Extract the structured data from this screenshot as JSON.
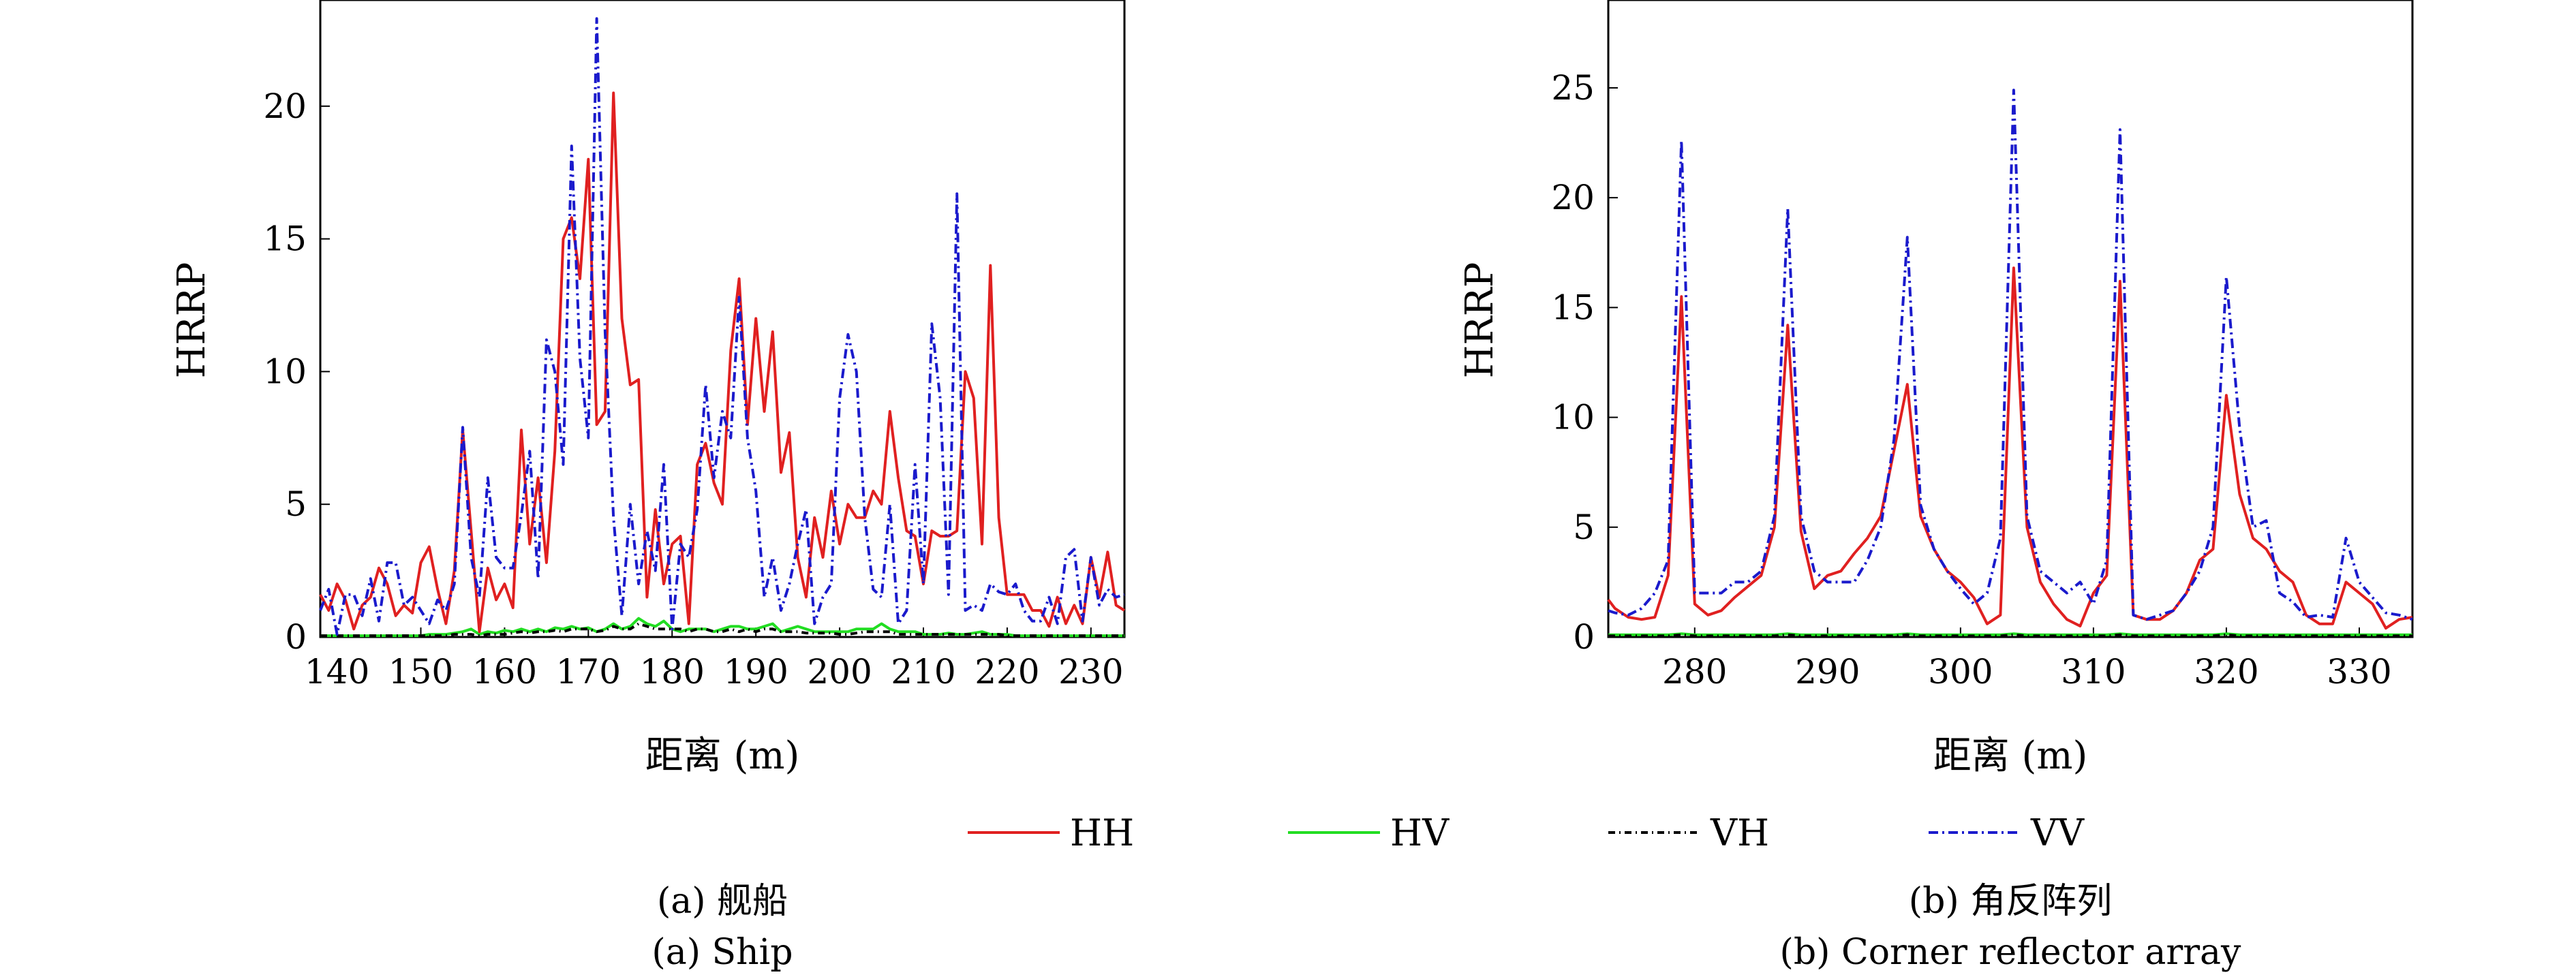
{
  "chart_data": [
    {
      "type": "line",
      "caption_cn": "(a) 舰船",
      "caption_en": "(a) Ship",
      "xlabel": "距离 (m)",
      "ylabel": "HRRP",
      "xlim": [
        138,
        234
      ],
      "ylim": [
        0,
        24
      ],
      "xticks": [
        140,
        150,
        160,
        170,
        180,
        190,
        200,
        210,
        220,
        230
      ],
      "yticks": [
        0,
        5,
        10,
        15,
        20
      ],
      "x": [
        138,
        139,
        140,
        141,
        142,
        143,
        144,
        145,
        146,
        147,
        148,
        149,
        150,
        151,
        152,
        153,
        154,
        155,
        156,
        157,
        158,
        159,
        160,
        161,
        162,
        163,
        164,
        165,
        166,
        167,
        168,
        169,
        170,
        171,
        172,
        173,
        174,
        175,
        176,
        177,
        178,
        179,
        180,
        181,
        182,
        183,
        184,
        185,
        186,
        187,
        188,
        189,
        190,
        191,
        192,
        193,
        194,
        195,
        196,
        197,
        198,
        199,
        200,
        201,
        202,
        203,
        204,
        205,
        206,
        207,
        208,
        209,
        210,
        211,
        212,
        213,
        214,
        215,
        216,
        217,
        218,
        219,
        220,
        221,
        222,
        223,
        224,
        225,
        226,
        227,
        228,
        229,
        230,
        231,
        232,
        233,
        234
      ],
      "series": [
        {
          "name": "HH",
          "color": "#e02020",
          "dash": "solid",
          "values": [
            1.6,
            1.0,
            2.0,
            1.4,
            0.3,
            1.2,
            1.5,
            2.6,
            2.0,
            0.8,
            1.2,
            0.9,
            2.8,
            3.4,
            1.8,
            0.5,
            2.5,
            7.8,
            4.0,
            0.2,
            2.6,
            1.4,
            2.0,
            1.1,
            7.8,
            3.5,
            6.0,
            2.8,
            7.0,
            15.0,
            15.8,
            13.5,
            18.0,
            8.0,
            8.5,
            20.5,
            12.0,
            9.5,
            9.7,
            1.5,
            4.8,
            2.0,
            3.5,
            3.8,
            0.5,
            6.5,
            7.3,
            5.8,
            5.0,
            10.8,
            13.5,
            8.0,
            12.0,
            8.5,
            11.5,
            6.2,
            7.7,
            3.0,
            1.5,
            4.5,
            3.0,
            5.5,
            3.5,
            5.0,
            4.5,
            4.5,
            5.5,
            5.0,
            8.5,
            6.0,
            4.0,
            3.8,
            2.0,
            4.0,
            3.8,
            3.8,
            4.0,
            10.0,
            9.0,
            3.5,
            14.0,
            4.5,
            1.6,
            1.6,
            1.6,
            1.0,
            1.0,
            0.4,
            1.5,
            0.5,
            1.2,
            0.5,
            3.0,
            1.5,
            3.2,
            1.2,
            1.0
          ]
        },
        {
          "name": "HV",
          "color": "#22dd22",
          "dash": "solid",
          "values": [
            0.05,
            0.05,
            0.05,
            0.05,
            0.05,
            0.05,
            0.05,
            0.05,
            0.05,
            0.05,
            0.05,
            0.05,
            0.05,
            0.1,
            0.1,
            0.1,
            0.15,
            0.2,
            0.3,
            0.1,
            0.2,
            0.15,
            0.25,
            0.2,
            0.3,
            0.2,
            0.3,
            0.2,
            0.35,
            0.3,
            0.4,
            0.3,
            0.35,
            0.2,
            0.3,
            0.5,
            0.3,
            0.4,
            0.7,
            0.5,
            0.4,
            0.6,
            0.3,
            0.2,
            0.3,
            0.3,
            0.3,
            0.2,
            0.3,
            0.4,
            0.4,
            0.3,
            0.3,
            0.4,
            0.5,
            0.2,
            0.3,
            0.4,
            0.3,
            0.2,
            0.2,
            0.2,
            0.2,
            0.2,
            0.3,
            0.3,
            0.3,
            0.5,
            0.3,
            0.2,
            0.2,
            0.2,
            0.1,
            0.1,
            0.1,
            0.15,
            0.1,
            0.1,
            0.15,
            0.2,
            0.1,
            0.1,
            0.1,
            0.05,
            0.05,
            0.05,
            0.05,
            0.05,
            0.05,
            0.05,
            0.05,
            0.05,
            0.05,
            0.05,
            0.05,
            0.05,
            0.05
          ]
        },
        {
          "name": "VH",
          "color": "#000000",
          "dash": "10,6,2,6",
          "values": [
            0.05,
            0.05,
            0.05,
            0.05,
            0.05,
            0.05,
            0.05,
            0.05,
            0.05,
            0.05,
            0.05,
            0.05,
            0.05,
            0.05,
            0.05,
            0.05,
            0.1,
            0.1,
            0.1,
            0.05,
            0.1,
            0.1,
            0.1,
            0.15,
            0.2,
            0.15,
            0.2,
            0.2,
            0.25,
            0.2,
            0.3,
            0.3,
            0.3,
            0.2,
            0.25,
            0.4,
            0.3,
            0.3,
            0.5,
            0.4,
            0.3,
            0.3,
            0.3,
            0.3,
            0.2,
            0.3,
            0.3,
            0.2,
            0.2,
            0.3,
            0.2,
            0.3,
            0.2,
            0.3,
            0.3,
            0.2,
            0.2,
            0.2,
            0.15,
            0.15,
            0.15,
            0.15,
            0.1,
            0.1,
            0.15,
            0.2,
            0.2,
            0.2,
            0.2,
            0.1,
            0.1,
            0.1,
            0.1,
            0.1,
            0.1,
            0.1,
            0.1,
            0.1,
            0.1,
            0.1,
            0.1,
            0.1,
            0.05,
            0.05,
            0.05,
            0.05,
            0.05,
            0.05,
            0.05,
            0.05,
            0.05,
            0.05,
            0.05,
            0.05,
            0.05,
            0.05,
            0.05
          ]
        },
        {
          "name": "VV",
          "color": "#1a1acc",
          "dash": "14,6,3,6",
          "values": [
            1.0,
            1.8,
            0.1,
            1.6,
            1.6,
            0.8,
            2.2,
            0.6,
            2.8,
            2.8,
            1.2,
            1.5,
            1.0,
            0.5,
            1.4,
            1.0,
            2.0,
            7.9,
            3.0,
            1.5,
            6.0,
            3.0,
            2.6,
            2.6,
            4.6,
            7.0,
            2.2,
            11.2,
            10.0,
            6.5,
            18.5,
            10.5,
            7.5,
            23.3,
            11.5,
            4.5,
            0.8,
            5.0,
            2.0,
            4.0,
            2.5,
            6.5,
            0.3,
            3.5,
            3.0,
            4.8,
            9.5,
            6.0,
            8.5,
            7.5,
            12.8,
            7.5,
            5.5,
            1.5,
            3.0,
            1.0,
            2.0,
            3.5,
            4.8,
            0.5,
            1.5,
            2.0,
            9.0,
            11.4,
            10.0,
            4.5,
            1.8,
            1.5,
            5.0,
            0.5,
            1.0,
            6.5,
            2.0,
            11.8,
            9.0,
            1.6,
            16.7,
            1.0,
            1.2,
            1.0,
            2.0,
            1.7,
            1.6,
            2.0,
            1.0,
            0.6,
            0.6,
            1.5,
            0.5,
            3.0,
            3.3,
            0.6,
            3.0,
            1.2,
            1.8,
            1.5,
            1.6
          ]
        }
      ]
    },
    {
      "type": "line",
      "caption_cn": "(b) 角反阵列",
      "caption_en": "(b) Corner reflector array",
      "xlabel": "距离 (m)",
      "ylabel": "HRRP",
      "xlim": [
        273.5,
        334
      ],
      "ylim": [
        0,
        29
      ],
      "xticks": [
        280,
        290,
        300,
        310,
        320,
        330
      ],
      "yticks": [
        0,
        5,
        10,
        15,
        20,
        25
      ],
      "x": [
        273.5,
        274,
        275,
        276,
        277,
        278,
        279,
        280,
        281,
        282,
        283,
        284,
        285,
        286,
        287,
        288,
        289,
        290,
        291,
        292,
        293,
        294,
        295,
        296,
        297,
        298,
        299,
        300,
        301,
        302,
        303,
        304,
        305,
        306,
        307,
        308,
        309,
        310,
        311,
        312,
        313,
        314,
        315,
        316,
        317,
        318,
        319,
        320,
        321,
        322,
        323,
        324,
        325,
        326,
        327,
        328,
        329,
        330,
        331,
        332,
        333,
        334
      ],
      "series": [
        {
          "name": "HH",
          "color": "#e02020",
          "dash": "solid",
          "values": [
            1.7,
            1.3,
            0.9,
            0.8,
            0.9,
            2.8,
            15.5,
            1.5,
            1.0,
            1.2,
            1.8,
            2.3,
            2.8,
            5.0,
            14.2,
            4.8,
            2.2,
            2.8,
            3.0,
            3.8,
            4.5,
            5.5,
            8.5,
            11.5,
            5.5,
            4.0,
            3.0,
            2.5,
            1.8,
            0.6,
            1.0,
            16.8,
            5.0,
            2.5,
            1.5,
            0.8,
            0.5,
            2.0,
            2.8,
            16.2,
            1.0,
            0.8,
            0.8,
            1.2,
            2.0,
            3.5,
            4.0,
            11.0,
            6.5,
            4.5,
            4.0,
            3.0,
            2.5,
            1.0,
            0.6,
            0.6,
            2.5,
            2.0,
            1.5,
            0.4,
            0.8,
            0.9
          ]
        },
        {
          "name": "HV",
          "color": "#22dd22",
          "dash": "solid",
          "values": [
            0.1,
            0.1,
            0.1,
            0.1,
            0.1,
            0.1,
            0.15,
            0.1,
            0.1,
            0.1,
            0.1,
            0.1,
            0.1,
            0.1,
            0.15,
            0.1,
            0.1,
            0.1,
            0.1,
            0.1,
            0.1,
            0.1,
            0.1,
            0.15,
            0.1,
            0.1,
            0.1,
            0.1,
            0.1,
            0.1,
            0.1,
            0.15,
            0.1,
            0.1,
            0.1,
            0.1,
            0.1,
            0.1,
            0.1,
            0.15,
            0.1,
            0.1,
            0.1,
            0.1,
            0.1,
            0.1,
            0.1,
            0.15,
            0.1,
            0.1,
            0.1,
            0.1,
            0.1,
            0.1,
            0.1,
            0.1,
            0.1,
            0.1,
            0.1,
            0.1,
            0.1,
            0.1
          ]
        },
        {
          "name": "VH",
          "color": "#000000",
          "dash": "10,6,2,6",
          "values": [
            0.05,
            0.05,
            0.05,
            0.05,
            0.05,
            0.05,
            0.1,
            0.05,
            0.05,
            0.05,
            0.05,
            0.05,
            0.05,
            0.05,
            0.1,
            0.05,
            0.05,
            0.05,
            0.05,
            0.05,
            0.05,
            0.05,
            0.05,
            0.1,
            0.05,
            0.05,
            0.05,
            0.05,
            0.05,
            0.05,
            0.05,
            0.1,
            0.05,
            0.05,
            0.05,
            0.05,
            0.05,
            0.05,
            0.05,
            0.1,
            0.05,
            0.05,
            0.05,
            0.05,
            0.05,
            0.05,
            0.05,
            0.1,
            0.05,
            0.05,
            0.05,
            0.05,
            0.05,
            0.05,
            0.05,
            0.05,
            0.05,
            0.05,
            0.05,
            0.05,
            0.05,
            0.05
          ]
        },
        {
          "name": "VV",
          "color": "#1a1acc",
          "dash": "14,6,3,6",
          "values": [
            1.2,
            1.1,
            1.0,
            1.3,
            2.0,
            3.5,
            22.6,
            2.0,
            2.0,
            2.0,
            2.5,
            2.5,
            3.0,
            5.5,
            19.5,
            5.5,
            3.0,
            2.5,
            2.5,
            2.5,
            3.5,
            5.0,
            9.0,
            18.2,
            6.0,
            4.0,
            3.0,
            2.2,
            1.5,
            2.0,
            4.5,
            24.9,
            5.5,
            3.0,
            2.5,
            2.0,
            2.5,
            1.5,
            3.5,
            23.1,
            1.0,
            0.8,
            1.0,
            1.2,
            2.0,
            3.0,
            5.0,
            16.4,
            9.5,
            5.0,
            5.3,
            2.0,
            1.6,
            0.9,
            1.0,
            0.9,
            4.5,
            2.5,
            1.8,
            1.1,
            1.0,
            0.8
          ]
        }
      ]
    }
  ],
  "legend": {
    "placement": "bottom-center",
    "items": [
      {
        "label": "HH",
        "color": "#e02020",
        "dash": "solid"
      },
      {
        "label": "HV",
        "color": "#22dd22",
        "dash": "solid"
      },
      {
        "label": "VH",
        "color": "#000000",
        "dash": "10,6,2,6"
      },
      {
        "label": "VV",
        "color": "#1a1acc",
        "dash": "14,6,3,6"
      }
    ]
  }
}
